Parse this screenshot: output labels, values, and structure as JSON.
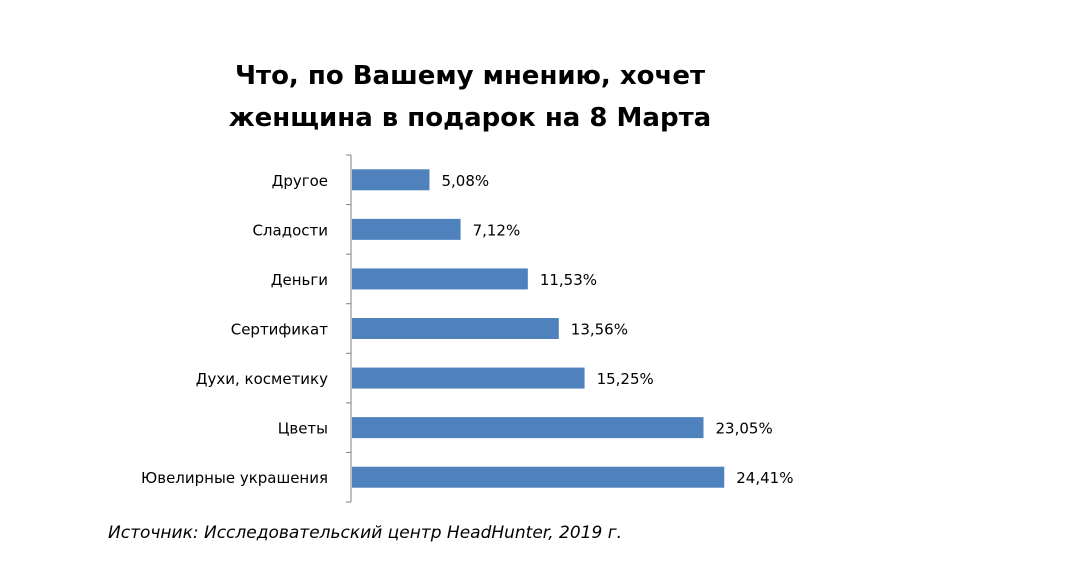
{
  "chart_data": {
    "type": "bar",
    "orientation": "horizontal",
    "title_lines": [
      "Что, по Вашему мнению, хочет",
      "женщина в подарок на 8 Марта"
    ],
    "categories": [
      "Другое",
      "Сладости",
      "Деньги",
      "Сертификат",
      "Духи, косметику",
      "Цветы",
      "Ювелирные украшения"
    ],
    "values": [
      5.08,
      7.12,
      11.53,
      13.56,
      15.25,
      23.05,
      24.41
    ],
    "value_labels": [
      "5,08%",
      "7,12%",
      "11,53%",
      "13,56%",
      "15,25%",
      "23,05%",
      "24,41%"
    ],
    "xlim": [
      0,
      30
    ],
    "grid": false,
    "legend": "none",
    "bar_color": "#4f81bd",
    "axis_color": "#808080"
  },
  "source": "Источник: Исследовательский центр HeadHunter, 2019 г."
}
